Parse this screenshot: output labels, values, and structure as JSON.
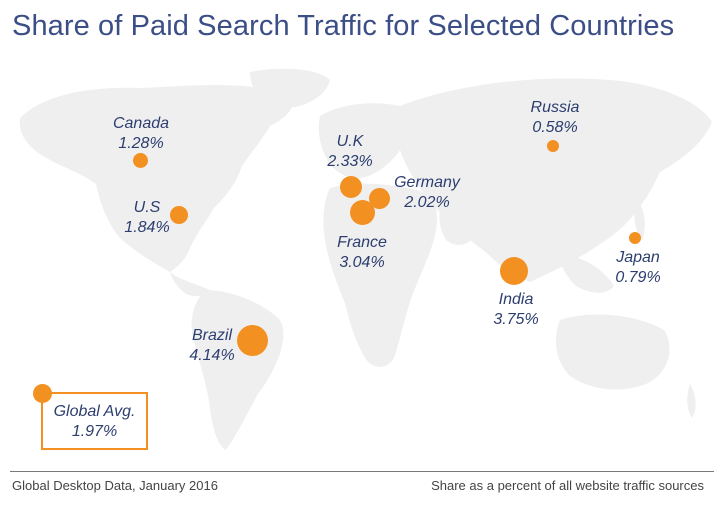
{
  "title": "Share of Paid Search Traffic for Selected Countries",
  "colors": {
    "bubble": "#f39022",
    "text": "#2c3e70",
    "title": "#3b4e86",
    "land": "#efefef"
  },
  "countries": [
    {
      "name": "Canada",
      "share": "1.28%",
      "value": 1.28
    },
    {
      "name": "U.S",
      "share": "1.84%",
      "value": 1.84
    },
    {
      "name": "U.K",
      "share": "2.33%",
      "value": 2.33
    },
    {
      "name": "Germany",
      "share": "2.02%",
      "value": 2.02
    },
    {
      "name": "France",
      "share": "3.04%",
      "value": 3.04
    },
    {
      "name": "Russia",
      "share": "0.58%",
      "value": 0.58
    },
    {
      "name": "India",
      "share": "3.75%",
      "value": 3.75
    },
    {
      "name": "Japan",
      "share": "0.79%",
      "value": 0.79
    },
    {
      "name": "Brazil",
      "share": "4.14%",
      "value": 4.14
    }
  ],
  "global_avg": {
    "name": "Global Avg.",
    "share": "1.97%",
    "value": 1.97
  },
  "footer": {
    "left": "Global Desktop Data, January 2016",
    "right": "Share as a percent of all website traffic sources"
  }
}
